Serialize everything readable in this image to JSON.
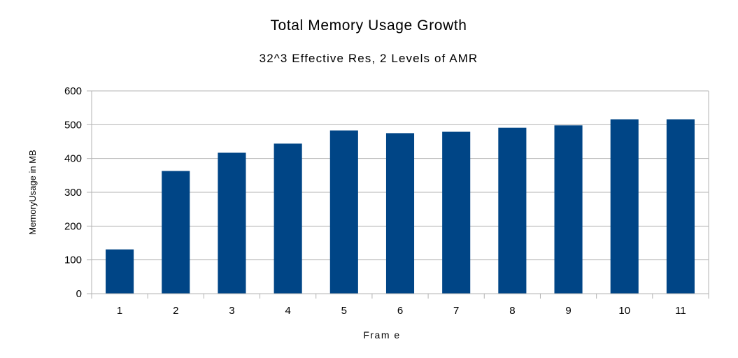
{
  "chart_data": {
    "type": "bar",
    "title": "Total Memory Usage Growth",
    "subtitle": "32^3 Effective Res, 2 Levels of AMR",
    "xlabel": "Fram e",
    "ylabel": "MemoryUsage in MB",
    "categories": [
      "1",
      "2",
      "3",
      "4",
      "5",
      "6",
      "7",
      "8",
      "9",
      "10",
      "11"
    ],
    "series": [
      {
        "values": [
          131,
          363,
          417,
          444,
          483,
          475,
          479,
          491,
          498,
          516,
          516
        ]
      }
    ],
    "ylim": [
      0,
      600
    ],
    "yticks": [
      "0",
      "100",
      "200",
      "300",
      "400",
      "500",
      "600"
    ],
    "grid": true,
    "legend": "none",
    "colors": {
      "bar": "#004586",
      "grid": "#b3b3b3",
      "axis": "#b3b3b3",
      "background": "#ffffff"
    }
  }
}
